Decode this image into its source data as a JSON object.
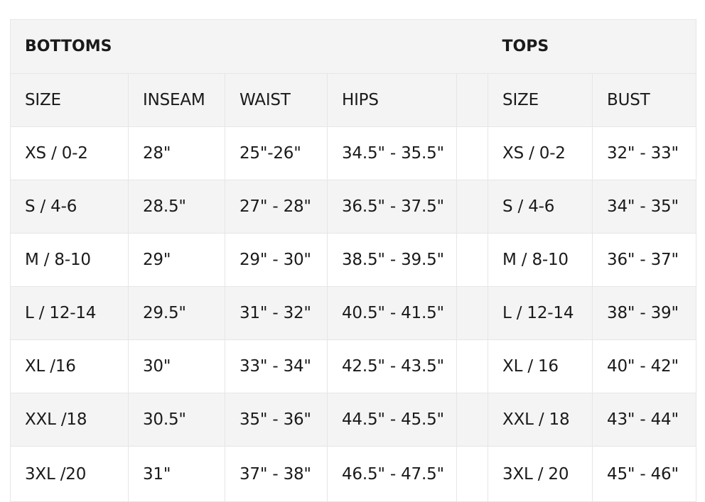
{
  "sections": {
    "bottoms_title": "BOTTOMS",
    "tops_title": "TOPS"
  },
  "headers": {
    "bottoms": [
      "SIZE",
      "INSEAM",
      "WAIST",
      "HIPS"
    ],
    "tops": [
      "SIZE",
      "BUST"
    ]
  },
  "rows": [
    {
      "bottoms": [
        "XS / 0-2",
        "28\"",
        "25\"-26\"",
        "34.5\" - 35.5\""
      ],
      "tops": [
        "XS / 0-2",
        "32\" - 33\""
      ]
    },
    {
      "bottoms": [
        "S / 4-6",
        "28.5\"",
        "27\" - 28\"",
        "36.5\" - 37.5\""
      ],
      "tops": [
        "S / 4-6",
        "34\" - 35\""
      ]
    },
    {
      "bottoms": [
        "M / 8-10",
        "29\"",
        "29\" - 30\"",
        "38.5\" - 39.5\""
      ],
      "tops": [
        "M / 8-10",
        "36\" - 37\""
      ]
    },
    {
      "bottoms": [
        "L / 12-14",
        "29.5\"",
        "31\" - 32\"",
        "40.5\" - 41.5\""
      ],
      "tops": [
        "L / 12-14",
        "38\" - 39\""
      ]
    },
    {
      "bottoms": [
        "XL /16",
        "30\"",
        "33\" - 34\"",
        "42.5\" - 43.5\""
      ],
      "tops": [
        "XL / 16",
        "40\" - 42\""
      ]
    },
    {
      "bottoms": [
        "XXL /18",
        "30.5\"",
        "35\" - 36\"",
        "44.5\" - 45.5\""
      ],
      "tops": [
        "XXL / 18",
        "43\" - 44\""
      ]
    },
    {
      "bottoms": [
        "3XL /20",
        "31\"",
        "37\" - 38\"",
        "46.5\" - 47.5\""
      ],
      "tops": [
        "3XL / 20",
        "45\" - 46\""
      ]
    }
  ]
}
